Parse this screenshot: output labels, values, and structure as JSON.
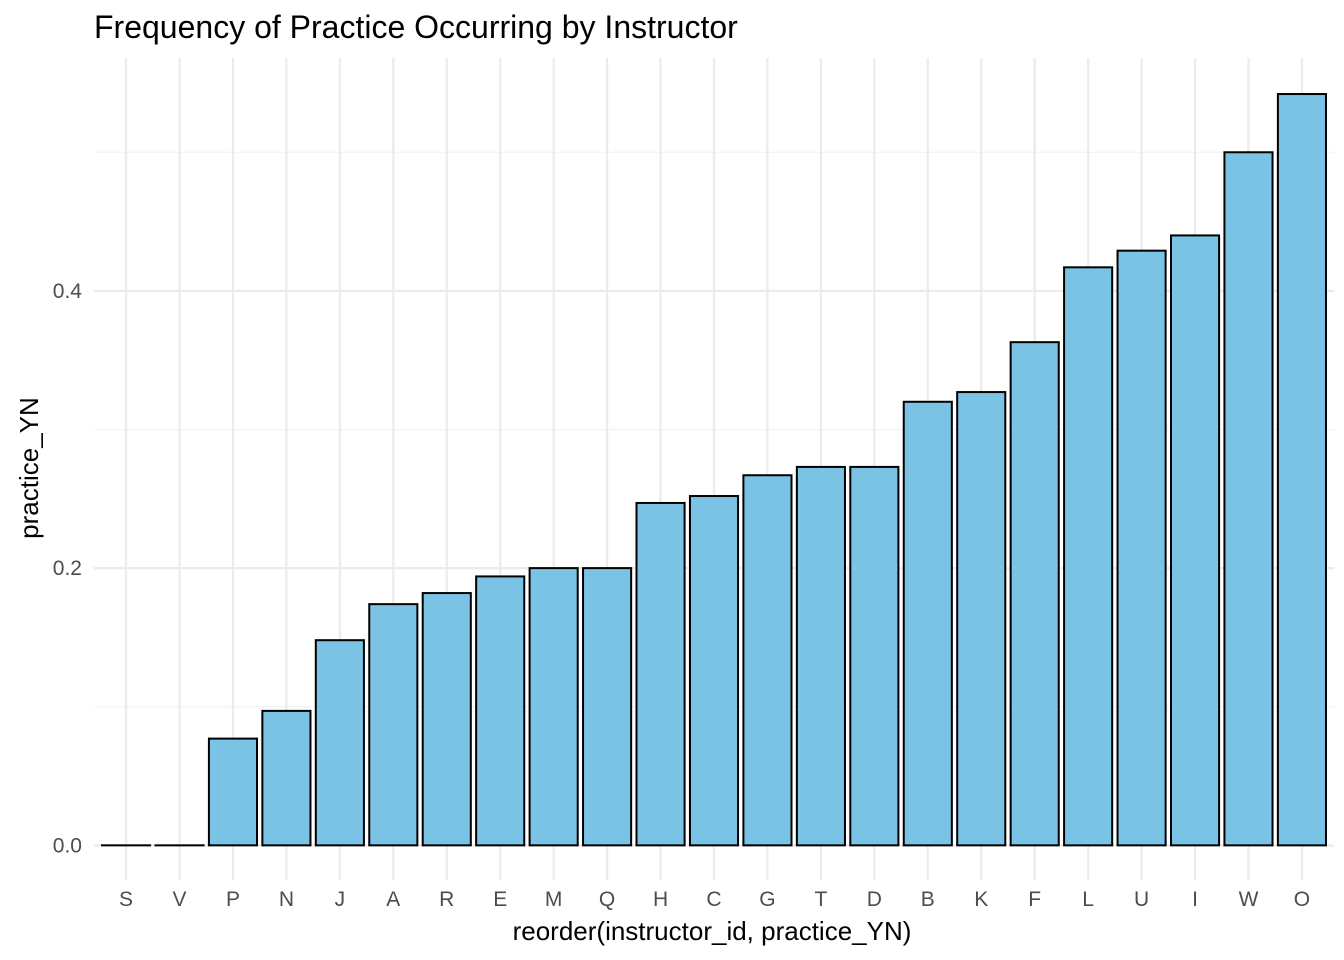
{
  "chart_data": {
    "type": "bar",
    "title": "Frequency of Practice Occurring by Instructor",
    "xlabel": "reorder(instructor_id, practice_YN)",
    "ylabel": "practice_YN",
    "categories": [
      "S",
      "V",
      "P",
      "N",
      "J",
      "A",
      "R",
      "E",
      "M",
      "Q",
      "H",
      "C",
      "G",
      "T",
      "D",
      "B",
      "K",
      "F",
      "L",
      "U",
      "I",
      "W",
      "O"
    ],
    "values": [
      0.0,
      0.0,
      0.077,
      0.097,
      0.148,
      0.174,
      0.182,
      0.194,
      0.2,
      0.2,
      0.247,
      0.252,
      0.267,
      0.273,
      0.273,
      0.32,
      0.327,
      0.363,
      0.417,
      0.429,
      0.44,
      0.5,
      0.542
    ],
    "yticks": [
      0.0,
      0.2,
      0.4
    ],
    "ytick_labels": [
      "0.0",
      "0.2",
      "0.4"
    ],
    "ylim": [
      -0.025,
      0.568
    ],
    "grid": true,
    "legend": "none",
    "colors": {
      "bar_fill": "#7AC3E5",
      "bar_stroke": "#000000",
      "grid_major": "#EBEBEB",
      "grid_minor": "#F2F2F2"
    }
  }
}
